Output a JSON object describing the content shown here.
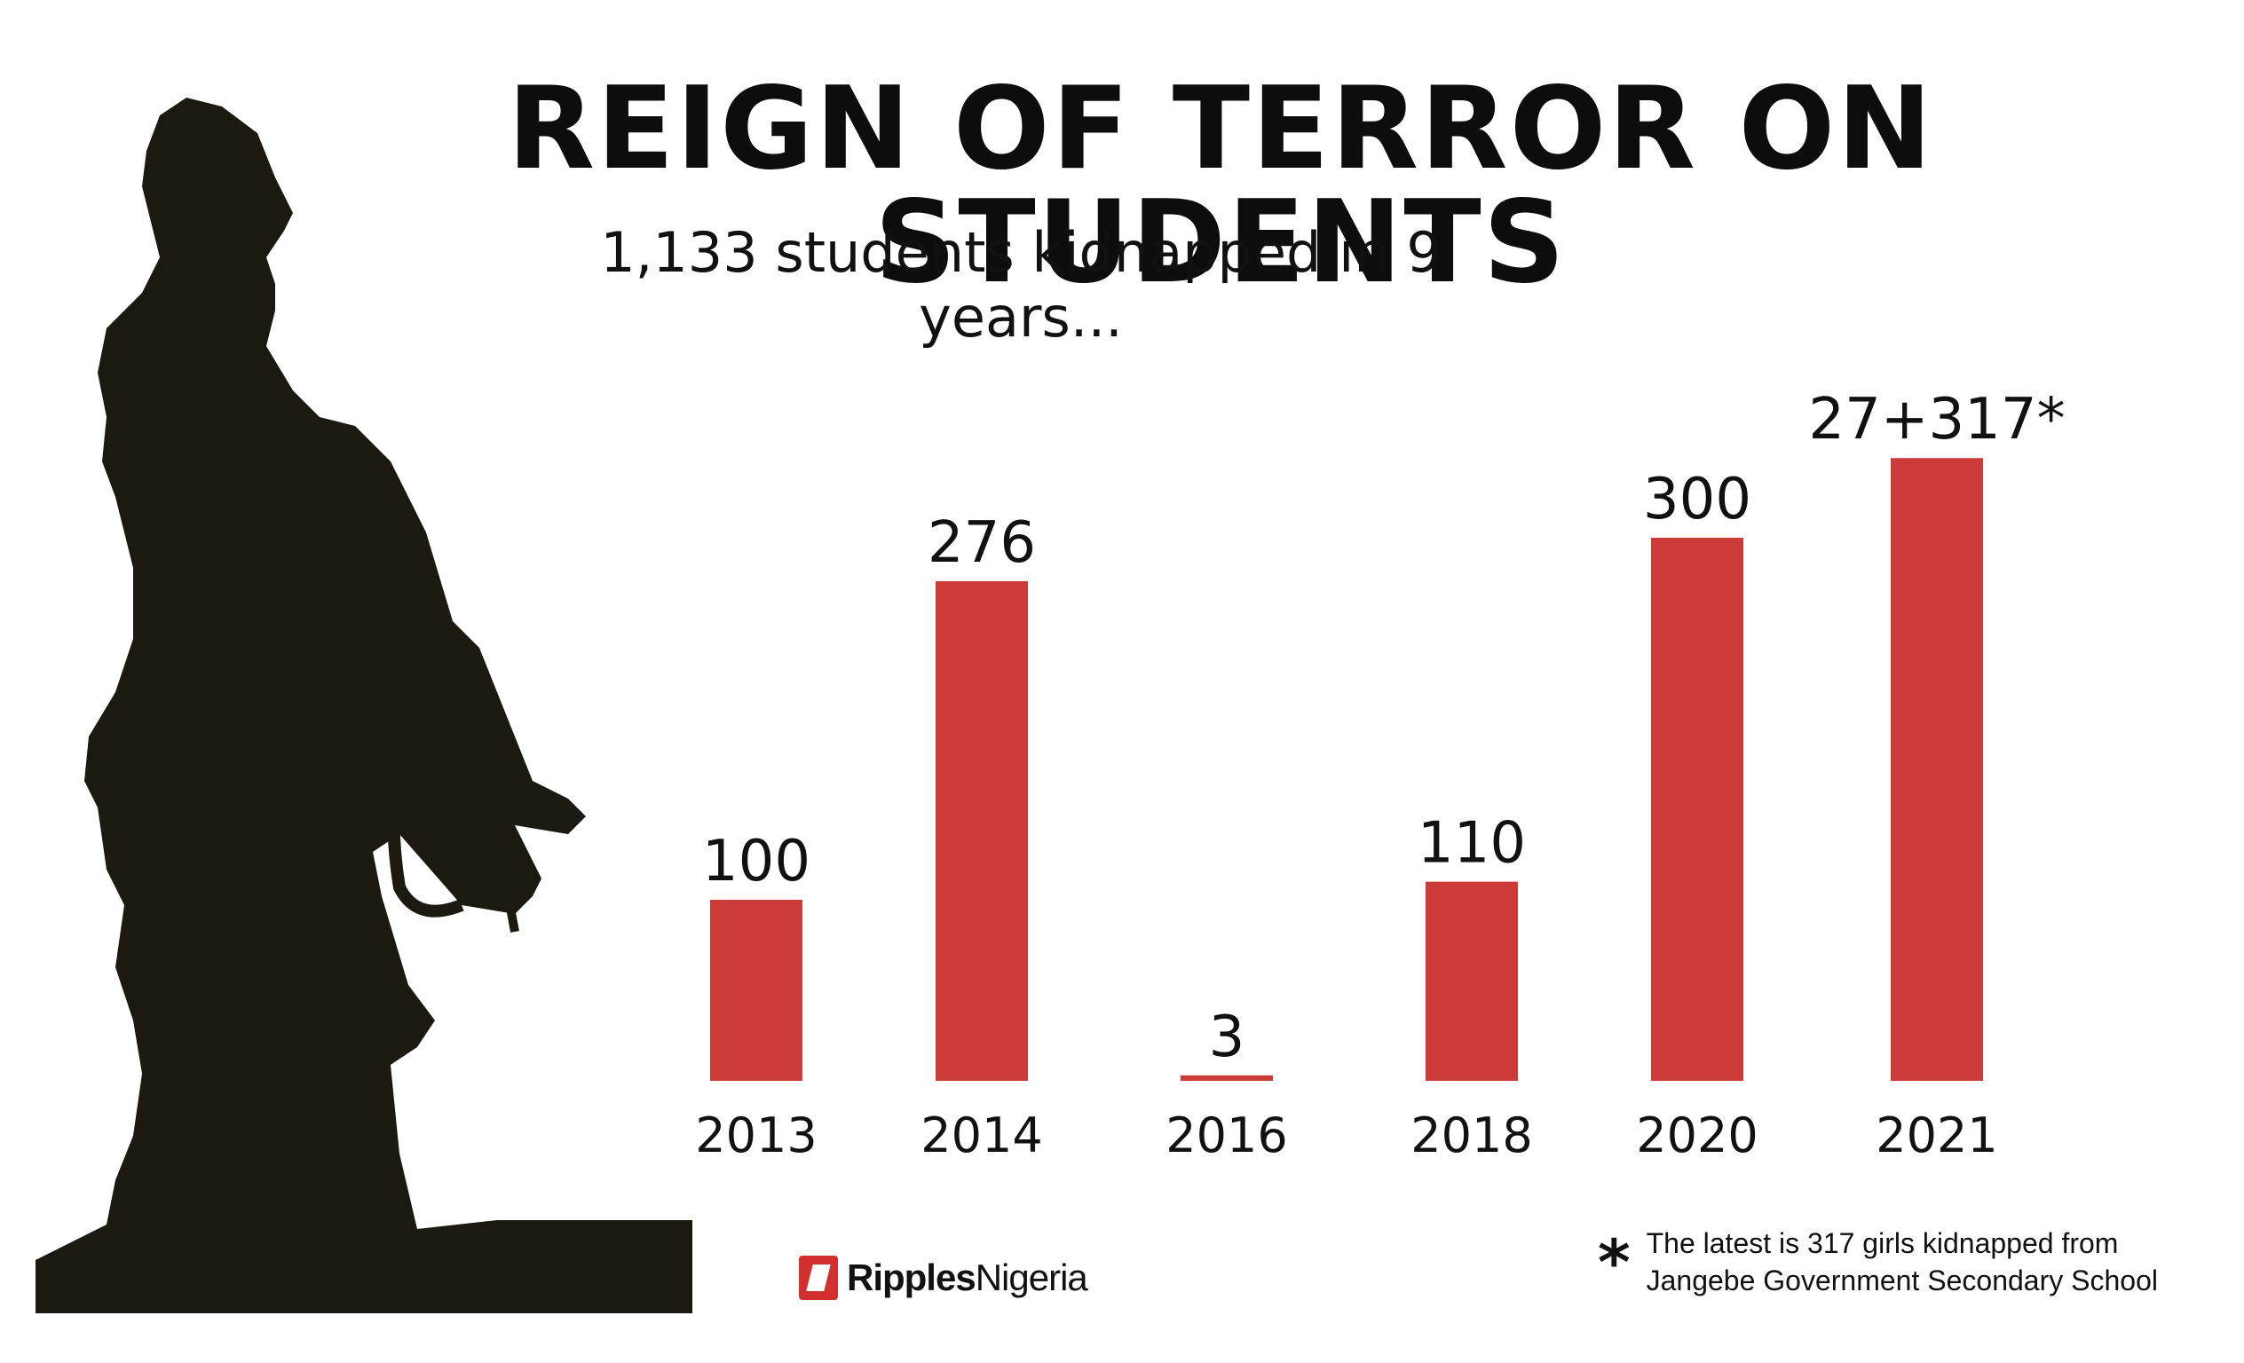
{
  "title": "REIGN OF TERROR ON STUDENTS",
  "subtitle": "1,133 students kidnapped in 9 years...",
  "colors": {
    "bar": "#cc3a3a",
    "silhouette": "#1c1a10",
    "text": "#111111"
  },
  "chart_data": {
    "type": "bar",
    "title": "REIGN OF TERROR ON STUDENTS",
    "subtitle": "1,133 students kidnapped in 9 years...",
    "categories": [
      "2013",
      "2014",
      "2016",
      "2018",
      "2020",
      "2021"
    ],
    "values": [
      100,
      276,
      3,
      110,
      300,
      344
    ],
    "value_labels": [
      "100",
      "276",
      "3",
      "110",
      "300",
      "27+317*"
    ],
    "grid": false,
    "legend": "none"
  },
  "logo": {
    "bold": "Ripples",
    "regular": "Nigeria"
  },
  "footnote": {
    "marker": "*",
    "line1": "The latest is 317 girls kidnapped from",
    "line2": "Jangebe Government Secondary School"
  }
}
